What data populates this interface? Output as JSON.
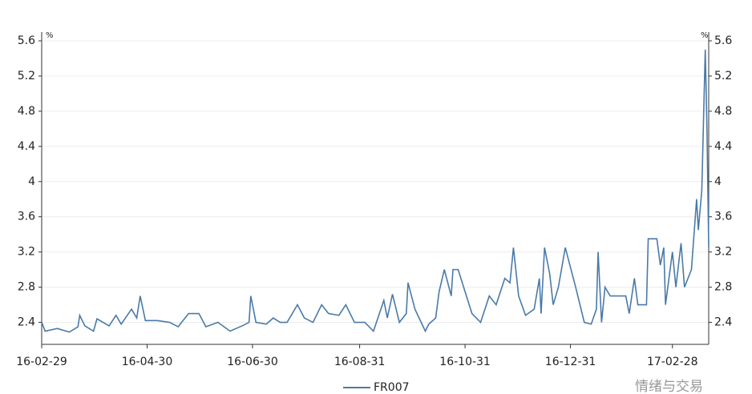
{
  "chart_data": {
    "type": "line",
    "y_unit": "%",
    "y2_unit": "%",
    "x": [
      "16-02-29",
      "16-03-02",
      "16-03-09",
      "16-03-16",
      "16-03-21",
      "16-03-22",
      "16-03-25",
      "16-03-30",
      "16-04-01",
      "16-04-08",
      "16-04-12",
      "16-04-15",
      "16-04-21",
      "16-04-24",
      "16-04-26",
      "16-04-29",
      "16-05-06",
      "16-05-13",
      "16-05-18",
      "16-05-24",
      "16-05-30",
      "16-06-03",
      "16-06-10",
      "16-06-17",
      "16-06-24",
      "16-06-28",
      "16-06-29",
      "16-07-02",
      "16-07-08",
      "16-07-12",
      "16-07-16",
      "16-07-20",
      "16-07-26",
      "16-07-30",
      "16-08-04",
      "16-08-09",
      "16-08-13",
      "16-08-19",
      "16-08-23",
      "16-08-28",
      "16-09-03",
      "16-09-08",
      "16-09-14",
      "16-09-16",
      "16-09-19",
      "16-09-23",
      "16-09-27",
      "16-09-28",
      "16-10-02",
      "16-10-08",
      "16-10-10",
      "16-10-14",
      "16-10-16",
      "16-10-19",
      "16-10-23",
      "16-10-24",
      "16-10-27",
      "16-10-31",
      "16-11-04",
      "16-11-09",
      "16-11-14",
      "16-11-18",
      "16-11-23",
      "16-11-26",
      "16-11-28",
      "16-12-01",
      "16-12-05",
      "16-12-10",
      "16-12-13",
      "16-12-14",
      "16-12-16",
      "16-12-19",
      "16-12-21",
      "16-12-24",
      "16-12-28",
      "17-01-03",
      "17-01-08",
      "17-01-12",
      "17-01-15",
      "17-01-16",
      "17-01-18",
      "17-01-20",
      "17-01-23",
      "17-02-01",
      "17-02-03",
      "17-02-06",
      "17-02-08",
      "17-02-13",
      "17-02-14",
      "17-02-19",
      "17-02-21",
      "17-02-23",
      "17-02-24",
      "17-02-28",
      "17-03-02",
      "17-03-05",
      "17-03-07",
      "17-03-11",
      "17-03-14",
      "17-03-15",
      "17-03-17",
      "17-03-19",
      "17-03-20",
      "17-03-21"
    ],
    "series": [
      {
        "name": "FR007",
        "color": "#4a7aa8",
        "values": [
          2.4,
          2.3,
          2.33,
          2.29,
          2.35,
          2.48,
          2.36,
          2.3,
          2.44,
          2.36,
          2.48,
          2.38,
          2.55,
          2.45,
          2.7,
          2.42,
          2.42,
          2.4,
          2.35,
          2.5,
          2.5,
          2.35,
          2.4,
          2.3,
          2.36,
          2.4,
          2.7,
          2.4,
          2.38,
          2.45,
          2.4,
          2.4,
          2.6,
          2.45,
          2.4,
          2.6,
          2.5,
          2.48,
          2.6,
          2.4,
          2.4,
          2.3,
          2.65,
          2.45,
          2.72,
          2.4,
          2.5,
          2.85,
          2.55,
          2.3,
          2.38,
          2.45,
          2.75,
          3.0,
          2.7,
          3.0,
          3.0,
          2.75,
          2.5,
          2.4,
          2.7,
          2.6,
          2.9,
          2.85,
          3.25,
          2.7,
          2.48,
          2.55,
          2.9,
          2.5,
          3.25,
          2.95,
          2.6,
          2.8,
          3.25,
          2.8,
          2.4,
          2.38,
          2.55,
          3.2,
          2.4,
          2.8,
          2.7,
          2.7,
          2.5,
          2.9,
          2.6,
          2.6,
          3.35,
          3.35,
          3.05,
          3.25,
          2.6,
          3.2,
          2.8,
          3.3,
          2.8,
          3.0,
          3.8,
          3.45,
          3.9,
          5.5,
          4.6,
          3.25
        ]
      }
    ],
    "xlim": [
      "16-02-29",
      "17-03-21"
    ],
    "xticks": [
      "16-02-29",
      "16-04-30",
      "16-06-30",
      "16-08-31",
      "16-10-31",
      "16-12-31",
      "17-02-28"
    ],
    "ylim": [
      2.15,
      5.7
    ],
    "yticks": [
      2.4,
      2.8,
      3.2,
      3.6,
      4.0,
      4.4,
      4.8,
      5.2,
      5.6
    ],
    "y2lim": [
      2.15,
      5.7
    ],
    "y2ticks": [
      2.4,
      2.8,
      3.2,
      3.6,
      4.0,
      4.4,
      4.8,
      5.2,
      5.6
    ],
    "grid": true,
    "legend": "bottom",
    "watermark": "情绪与交易"
  }
}
